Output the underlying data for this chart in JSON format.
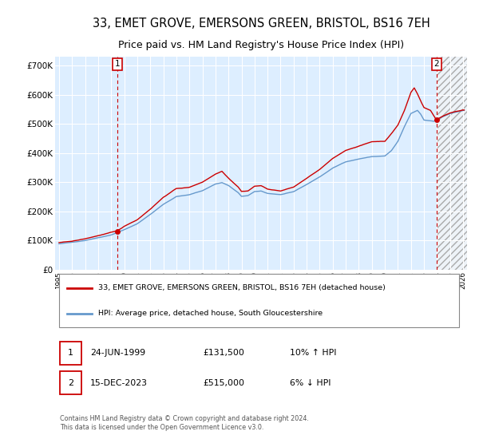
{
  "title": "33, EMET GROVE, EMERSONS GREEN, BRISTOL, BS16 7EH",
  "subtitle": "Price paid vs. HM Land Registry's House Price Index (HPI)",
  "title_fontsize": 10.5,
  "subtitle_fontsize": 9.0,
  "background_color": "#ffffff",
  "plot_bg_color": "#ddeeff",
  "grid_color": "#ffffff",
  "hatch_bg_color": "#eef4fa",
  "ylabel_ticks": [
    "£0",
    "£100K",
    "£200K",
    "£300K",
    "£400K",
    "£500K",
    "£600K",
    "£700K"
  ],
  "ytick_vals": [
    0,
    100000,
    200000,
    300000,
    400000,
    500000,
    600000,
    700000
  ],
  "ylim": [
    0,
    730000
  ],
  "xlim_start": 1994.7,
  "xlim_end": 2026.3,
  "hatch_start": 2024.0,
  "xtick_years": [
    1995,
    1996,
    1997,
    1998,
    1999,
    2000,
    2001,
    2002,
    2003,
    2004,
    2005,
    2006,
    2007,
    2008,
    2009,
    2010,
    2011,
    2012,
    2013,
    2014,
    2015,
    2016,
    2017,
    2018,
    2019,
    2020,
    2021,
    2022,
    2023,
    2024,
    2025,
    2026
  ],
  "sale1_x": 1999.48,
  "sale1_y": 131500,
  "sale1_label": "1",
  "sale2_x": 2023.96,
  "sale2_y": 515000,
  "sale2_label": "2",
  "sale_color": "#cc0000",
  "hpi_color": "#6699cc",
  "legend_label1": "33, EMET GROVE, EMERSONS GREEN, BRISTOL, BS16 7EH (detached house)",
  "legend_label2": "HPI: Average price, detached house, South Gloucestershire",
  "table_rows": [
    {
      "num": "1",
      "date": "24-JUN-1999",
      "price": "£131,500",
      "hpi": "10% ↑ HPI"
    },
    {
      "num": "2",
      "date": "15-DEC-2023",
      "price": "£515,000",
      "hpi": "6% ↓ HPI"
    }
  ],
  "footnote": "Contains HM Land Registry data © Crown copyright and database right 2024.\nThis data is licensed under the Open Government Licence v3.0."
}
